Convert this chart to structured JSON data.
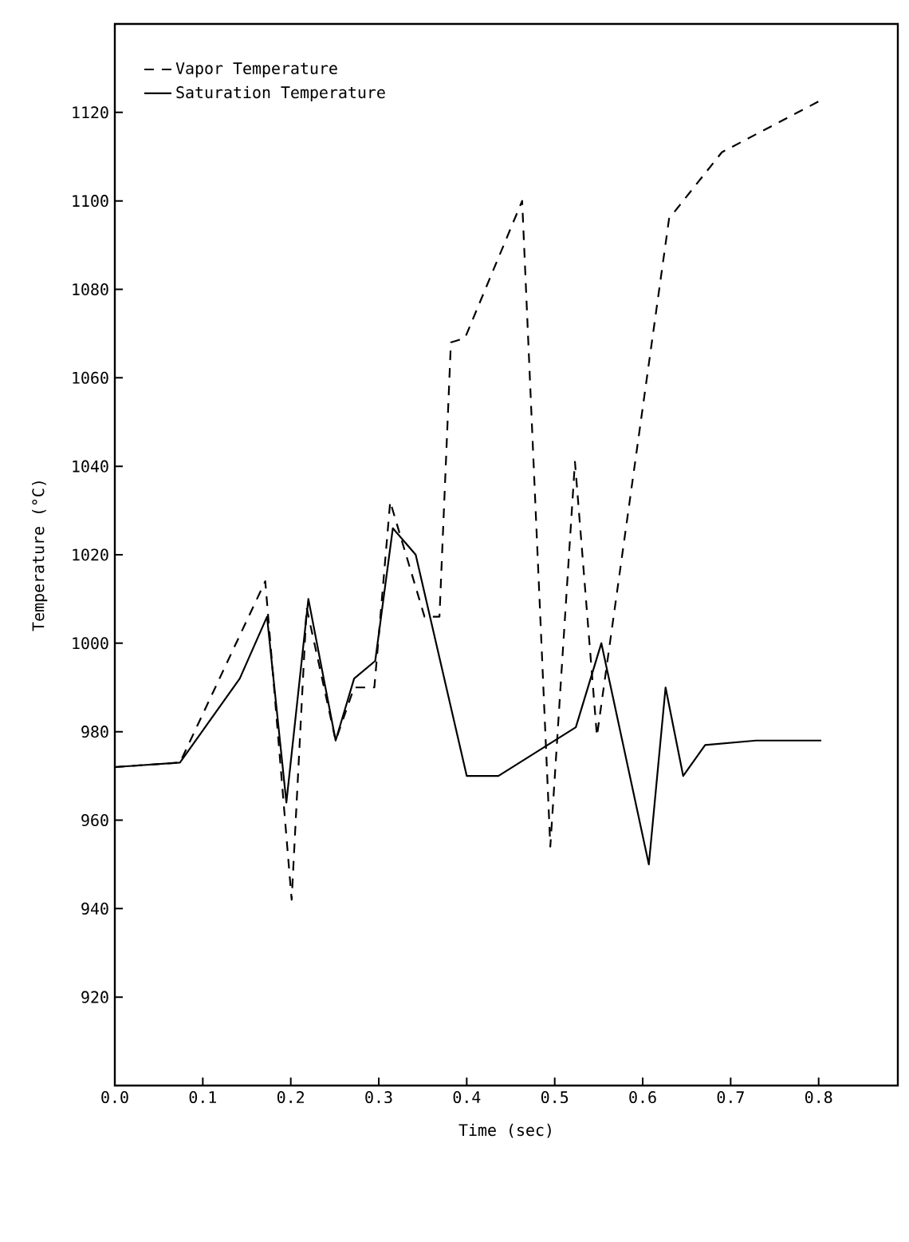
{
  "chart_data": {
    "type": "line",
    "xlabel": "Time (sec)",
    "ylabel": "Temperature (°C)",
    "xlim": [
      0,
      0.89
    ],
    "ylim": [
      900,
      1140
    ],
    "xticks": [
      {
        "value": 0,
        "label": "0.0"
      },
      0.1,
      0.2,
      0.3,
      0.4,
      0.5,
      0.6,
      0.7,
      0.8
    ],
    "yticks": [
      920,
      940,
      960,
      980,
      1000,
      1020,
      1040,
      1060,
      1080,
      1100,
      1120
    ],
    "grid": false,
    "legend": "top left",
    "series": [
      {
        "name": "Vapor Temperature",
        "color": "#000000",
        "line_style": "dashed",
        "x": [
          0,
          0.074,
          0.171,
          0.201,
          0.218,
          0.251,
          0.272,
          0.295,
          0.313,
          0.352,
          0.369,
          0.382,
          0.398,
          0.463,
          0.495,
          0.523,
          0.548,
          0.63,
          0.69,
          0.805
        ],
        "values": [
          972,
          973,
          1014,
          942,
          1008,
          978,
          990,
          990,
          1032,
          1006,
          1006,
          1068,
          1069,
          1100,
          954,
          1041,
          979,
          1096,
          1111,
          1123
        ]
      },
      {
        "name": "Saturation Temperature",
        "color": "#000000",
        "line_style": "solid",
        "x": [
          0,
          0.074,
          0.142,
          0.173,
          0.195,
          0.22,
          0.251,
          0.272,
          0.296,
          0.316,
          0.342,
          0.4,
          0.436,
          0.524,
          0.553,
          0.607,
          0.626,
          0.646,
          0.671,
          0.729,
          0.803
        ],
        "values": [
          972,
          973,
          992,
          1006,
          964,
          1010,
          978,
          992,
          996,
          1026,
          1020,
          970,
          970,
          981,
          1000,
          950,
          990,
          970,
          977,
          978,
          978
        ]
      }
    ]
  }
}
